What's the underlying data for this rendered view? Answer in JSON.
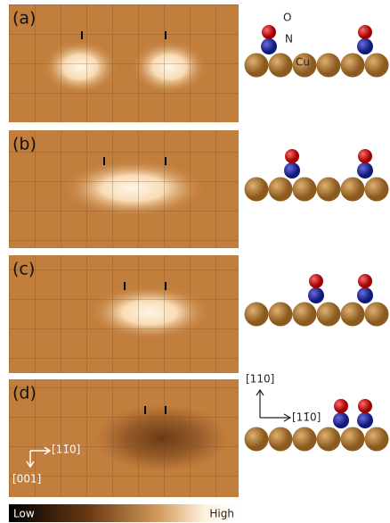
{
  "panels": [
    {
      "label": "(a)"
    },
    {
      "label": "(b)"
    },
    {
      "label": "(c)"
    },
    {
      "label": "(d)"
    }
  ],
  "atom_labels": {
    "oxygen": "O",
    "nitrogen": "N",
    "copper": "Cu"
  },
  "inset_axes": {
    "horizontal": "[11̄0]",
    "vertical": "[001]"
  },
  "model_axes": {
    "vertical": "[110]",
    "horizontal": "[11̄0]"
  },
  "colorbar": {
    "low": "Low",
    "high": "High"
  }
}
